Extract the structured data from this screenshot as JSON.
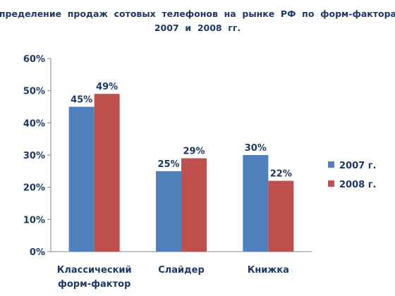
{
  "chart_data": {
    "type": "bar",
    "title_lines": [
      "Распределение  продаж  сотовых  телефонов  на  рынке  РФ  по  форм-факторам  -",
      "2007  и  2008  гг."
    ],
    "categories": [
      [
        "Классический",
        "форм-фактор"
      ],
      [
        "Слайдер"
      ],
      [
        "Книжка"
      ]
    ],
    "series": [
      {
        "name": "2007 г.",
        "values": [
          45,
          25,
          30
        ],
        "labels": [
          "45%",
          "25%",
          "30%"
        ],
        "color": "#4f81bd"
      },
      {
        "name": "2008 г.",
        "values": [
          49,
          29,
          22
        ],
        "labels": [
          "49%",
          "29%",
          "22%"
        ],
        "color": "#c0504d"
      }
    ],
    "y_ticks": [
      "0%",
      "10%",
      "20%",
      "30%",
      "40%",
      "50%",
      "60%"
    ],
    "ylim": [
      0,
      60
    ],
    "gridlines": false,
    "legend_position": "right"
  }
}
